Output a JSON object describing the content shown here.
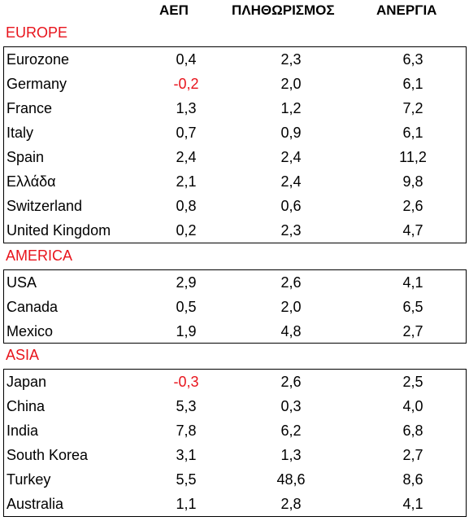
{
  "headers": [
    "ΑΕΠ",
    "ΠΛΗΘΩΡΙΣΜΟΣ",
    "ΑΝΕΡΓΙΑ"
  ],
  "sections": [
    {
      "title": "EUROPE",
      "rows": [
        {
          "name": "Eurozone",
          "gdp": "0,4",
          "inflation": "2,3",
          "unemployment": "6,3"
        },
        {
          "name": "Germany",
          "gdp": "-0,2",
          "inflation": "2,0",
          "unemployment": "6,1"
        },
        {
          "name": "France",
          "gdp": "1,3",
          "inflation": "1,2",
          "unemployment": "7,2"
        },
        {
          "name": "Italy",
          "gdp": "0,7",
          "inflation": "0,9",
          "unemployment": "6,1"
        },
        {
          "name": "Spain",
          "gdp": "2,4",
          "inflation": "2,4",
          "unemployment": "11,2"
        },
        {
          "name": "Ελλάδα",
          "gdp": "2,1",
          "inflation": "2,4",
          "unemployment": "9,8"
        },
        {
          "name": "Switzerland",
          "gdp": "0,8",
          "inflation": "0,6",
          "unemployment": "2,6"
        },
        {
          "name": "United Kingdom",
          "gdp": "0,2",
          "inflation": "2,3",
          "unemployment": "4,7"
        }
      ]
    },
    {
      "title": "AMERICA",
      "rows": [
        {
          "name": "USA",
          "gdp": "2,9",
          "inflation": "2,6",
          "unemployment": "4,1"
        },
        {
          "name": "Canada",
          "gdp": "0,5",
          "inflation": "2,0",
          "unemployment": "6,5"
        },
        {
          "name": "Mexico",
          "gdp": "1,9",
          "inflation": "4,8",
          "unemployment": "2,7"
        }
      ]
    },
    {
      "title": "ASIA",
      "rows": [
        {
          "name": "Japan",
          "gdp": "-0,3",
          "inflation": "2,6",
          "unemployment": "2,5"
        },
        {
          "name": "China",
          "gdp": "5,3",
          "inflation": "0,3",
          "unemployment": "4,0"
        },
        {
          "name": "India",
          "gdp": "7,8",
          "inflation": "6,2",
          "unemployment": "6,8"
        },
        {
          "name": "South Korea",
          "gdp": "3,1",
          "inflation": "1,3",
          "unemployment": "2,7"
        },
        {
          "name": "Turkey",
          "gdp": "5,5",
          "inflation": "48,6",
          "unemployment": "8,6"
        },
        {
          "name": "Australia",
          "gdp": "1,1",
          "inflation": "2,8",
          "unemployment": "4,1"
        }
      ]
    }
  ],
  "colors": {
    "section_title": "#e8141c",
    "negative_value": "#e8141c",
    "text": "#000000"
  }
}
